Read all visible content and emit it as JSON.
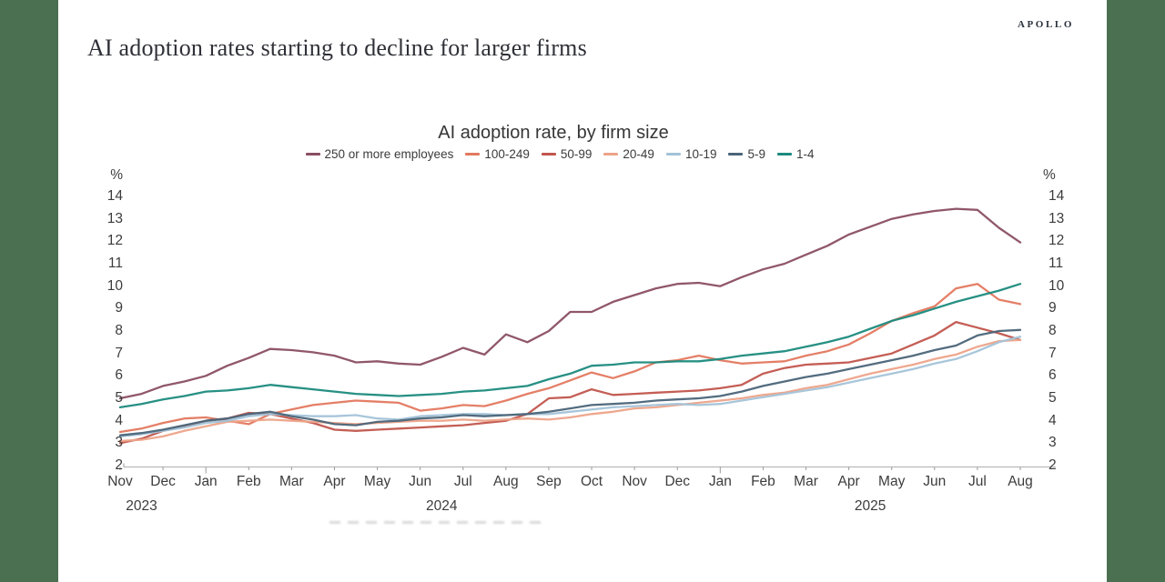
{
  "frame": {
    "side_bar_color": "#4b7051",
    "background": "#ffffff"
  },
  "header": {
    "logo": "APOLLO",
    "title": "AI adoption rates starting to decline for larger firms"
  },
  "chart_data": {
    "type": "line",
    "title": "AI adoption rate, by firm size",
    "unit_label": "%",
    "y_min": 2,
    "y_max": 14,
    "y_ticks": [
      14,
      13,
      12,
      11,
      10,
      9,
      8,
      7,
      6,
      5,
      4,
      3,
      2
    ],
    "grid": "off",
    "legend_position": "top-center",
    "points_per_month": 2,
    "x_month_labels": [
      "Nov",
      "Dec",
      "Jan",
      "Feb",
      "Mar",
      "Apr",
      "May",
      "Jun",
      "Jul",
      "Aug",
      "Sep",
      "Oct",
      "Nov",
      "Dec",
      "Jan",
      "Feb",
      "Mar",
      "Apr",
      "May",
      "Jun",
      "Jul",
      "Aug"
    ],
    "x_year_labels": [
      {
        "label": "2023",
        "month_span": [
          0,
          1
        ]
      },
      {
        "label": "2024",
        "month_span": [
          2,
          13
        ]
      },
      {
        "label": "2025",
        "month_span": [
          14,
          21
        ]
      }
    ],
    "series": [
      {
        "name": "250 or more employees",
        "color": "#8a4e62",
        "values": [
          5.0,
          5.2,
          5.55,
          5.75,
          6.0,
          6.45,
          6.8,
          7.2,
          7.15,
          7.05,
          6.9,
          6.6,
          6.65,
          6.55,
          6.5,
          6.85,
          7.25,
          6.95,
          7.85,
          7.5,
          8.0,
          8.85,
          8.85,
          9.3,
          9.6,
          9.9,
          10.1,
          10.15,
          10.0,
          10.4,
          10.75,
          11.0,
          11.4,
          11.8,
          12.3,
          12.65,
          13.0,
          13.2,
          13.35,
          13.45,
          13.4,
          12.6,
          11.95
        ]
      },
      {
        "name": "100-249",
        "color": "#e3785f",
        "values": [
          3.5,
          3.65,
          3.9,
          4.1,
          4.15,
          4.0,
          3.85,
          4.3,
          4.5,
          4.7,
          4.8,
          4.9,
          4.85,
          4.8,
          4.45,
          4.55,
          4.7,
          4.65,
          4.9,
          5.2,
          5.45,
          5.8,
          6.15,
          5.9,
          6.2,
          6.6,
          6.7,
          6.9,
          6.7,
          6.55,
          6.6,
          6.65,
          6.9,
          7.1,
          7.4,
          7.9,
          8.45,
          8.8,
          9.1,
          9.9,
          10.1,
          9.4,
          9.2
        ]
      },
      {
        "name": "50-99",
        "color": "#c1554c",
        "values": [
          3.0,
          3.2,
          3.55,
          3.75,
          4.0,
          4.1,
          4.35,
          4.3,
          4.1,
          3.9,
          3.6,
          3.55,
          3.6,
          3.65,
          3.7,
          3.75,
          3.8,
          3.9,
          4.0,
          4.3,
          5.0,
          5.05,
          5.4,
          5.15,
          5.2,
          5.25,
          5.3,
          5.35,
          5.45,
          5.6,
          6.1,
          6.35,
          6.5,
          6.55,
          6.6,
          6.8,
          7.0,
          7.4,
          7.8,
          8.4,
          8.15,
          7.9,
          7.6
        ]
      },
      {
        "name": "20-49",
        "color": "#eda389",
        "values": [
          3.1,
          3.15,
          3.3,
          3.55,
          3.75,
          3.95,
          4.0,
          4.05,
          4.0,
          3.95,
          3.9,
          3.85,
          3.9,
          3.95,
          4.0,
          4.0,
          4.05,
          4.0,
          4.05,
          4.1,
          4.05,
          4.15,
          4.3,
          4.4,
          4.55,
          4.6,
          4.7,
          4.8,
          4.9,
          5.0,
          5.15,
          5.25,
          5.45,
          5.6,
          5.85,
          6.1,
          6.3,
          6.5,
          6.75,
          6.95,
          7.3,
          7.55,
          7.6
        ]
      },
      {
        "name": "10-19",
        "color": "#a3c3d8",
        "values": [
          3.3,
          3.4,
          3.55,
          3.7,
          3.9,
          4.0,
          4.2,
          4.3,
          4.25,
          4.2,
          4.2,
          4.25,
          4.1,
          4.05,
          4.2,
          4.25,
          4.3,
          4.3,
          4.25,
          4.3,
          4.3,
          4.4,
          4.5,
          4.6,
          4.65,
          4.7,
          4.75,
          4.7,
          4.75,
          4.9,
          5.05,
          5.2,
          5.35,
          5.5,
          5.7,
          5.9,
          6.1,
          6.3,
          6.55,
          6.75,
          7.1,
          7.5,
          7.75
        ]
      },
      {
        "name": "5-9",
        "color": "#4a6478",
        "values": [
          3.35,
          3.45,
          3.6,
          3.8,
          4.0,
          4.1,
          4.3,
          4.4,
          4.2,
          4.05,
          3.85,
          3.8,
          3.95,
          4.0,
          4.1,
          4.15,
          4.25,
          4.2,
          4.25,
          4.3,
          4.4,
          4.55,
          4.7,
          4.75,
          4.8,
          4.9,
          4.95,
          5.0,
          5.1,
          5.3,
          5.55,
          5.75,
          5.95,
          6.1,
          6.3,
          6.5,
          6.7,
          6.9,
          7.15,
          7.35,
          7.8,
          8.0,
          8.05
        ]
      },
      {
        "name": "1-4",
        "color": "#1b8a7d",
        "values": [
          4.6,
          4.75,
          4.95,
          5.1,
          5.3,
          5.35,
          5.45,
          5.6,
          5.5,
          5.4,
          5.3,
          5.2,
          5.15,
          5.1,
          5.15,
          5.2,
          5.3,
          5.35,
          5.45,
          5.55,
          5.85,
          6.1,
          6.45,
          6.5,
          6.6,
          6.6,
          6.65,
          6.65,
          6.75,
          6.9,
          7.0,
          7.1,
          7.3,
          7.5,
          7.75,
          8.1,
          8.45,
          8.7,
          9.0,
          9.3,
          9.55,
          9.8,
          10.1
        ]
      }
    ]
  }
}
